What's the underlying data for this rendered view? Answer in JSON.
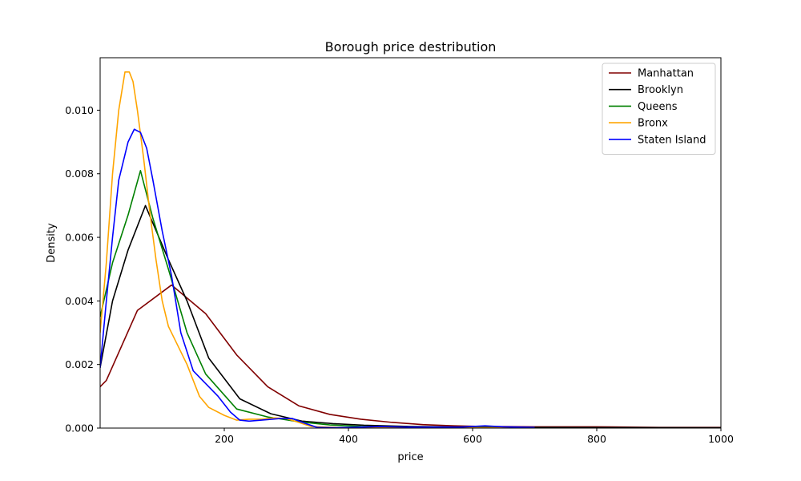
{
  "chart_data": {
    "type": "line",
    "title": "Borough price destribution",
    "xlabel": "price",
    "ylabel": "Density",
    "xlim": [
      0,
      1000
    ],
    "ylim": [
      0,
      0.01165
    ],
    "xticks": [
      200,
      400,
      600,
      800,
      1000
    ],
    "xtick_labels": [
      "200",
      "400",
      "600",
      "800",
      "1000"
    ],
    "yticks": [
      0.0,
      0.002,
      0.004,
      0.006,
      0.008,
      0.01
    ],
    "ytick_labels": [
      "0.000",
      "0.002",
      "0.004",
      "0.006",
      "0.008",
      "0.010"
    ],
    "grid": false,
    "legend_position": "top-right",
    "series": [
      {
        "name": "Manhattan",
        "color": "#800000",
        "points": [
          [
            0,
            0.0013
          ],
          [
            10,
            0.0015
          ],
          [
            60,
            0.0037
          ],
          [
            115,
            0.0045
          ],
          [
            170,
            0.0036
          ],
          [
            220,
            0.0023
          ],
          [
            270,
            0.0013
          ],
          [
            320,
            0.0007
          ],
          [
            370,
            0.00043
          ],
          [
            420,
            0.00028
          ],
          [
            470,
            0.00018
          ],
          [
            520,
            0.00011
          ],
          [
            570,
            7e-05
          ],
          [
            620,
            5e-05
          ],
          [
            700,
            4e-05
          ],
          [
            800,
            4e-05
          ],
          [
            900,
            2e-05
          ],
          [
            1000,
            2e-05
          ]
        ]
      },
      {
        "name": "Brooklyn",
        "color": "#000000",
        "points": [
          [
            0,
            0.0019
          ],
          [
            20,
            0.004
          ],
          [
            45,
            0.0056
          ],
          [
            73,
            0.007
          ],
          [
            110,
            0.0053
          ],
          [
            140,
            0.004
          ],
          [
            175,
            0.0022
          ],
          [
            225,
            0.00092
          ],
          [
            275,
            0.00045
          ],
          [
            325,
            0.00022
          ],
          [
            375,
            0.00014
          ],
          [
            425,
            9e-05
          ],
          [
            500,
            5e-05
          ],
          [
            600,
            3e-05
          ],
          [
            700,
            2e-05
          ],
          [
            1000,
            1e-05
          ]
        ]
      },
      {
        "name": "Queens",
        "color": "#008000",
        "points": [
          [
            0,
            0.0035
          ],
          [
            20,
            0.0052
          ],
          [
            45,
            0.0067
          ],
          [
            65,
            0.0081
          ],
          [
            85,
            0.0066
          ],
          [
            110,
            0.005
          ],
          [
            140,
            0.003
          ],
          [
            170,
            0.0017
          ],
          [
            220,
            0.0006
          ],
          [
            270,
            0.00035
          ],
          [
            320,
            0.0002
          ],
          [
            370,
            0.0001
          ],
          [
            420,
            5e-05
          ],
          [
            500,
            2e-05
          ],
          [
            600,
            2e-05
          ],
          [
            700,
            1e-05
          ]
        ]
      },
      {
        "name": "Bronx",
        "color": "#ffa500",
        "points": [
          [
            0,
            0.003
          ],
          [
            10,
            0.0052
          ],
          [
            20,
            0.008
          ],
          [
            30,
            0.01
          ],
          [
            40,
            0.0112
          ],
          [
            47,
            0.0112
          ],
          [
            53,
            0.0109
          ],
          [
            60,
            0.01
          ],
          [
            70,
            0.0085
          ],
          [
            80,
            0.0068
          ],
          [
            90,
            0.0053
          ],
          [
            100,
            0.004
          ],
          [
            110,
            0.0032
          ],
          [
            120,
            0.0028
          ],
          [
            140,
            0.002
          ],
          [
            160,
            0.001
          ],
          [
            175,
            0.00065
          ],
          [
            200,
            0.0004
          ],
          [
            220,
            0.00025
          ],
          [
            240,
            0.00028
          ],
          [
            260,
            0.00028
          ],
          [
            280,
            0.00032
          ],
          [
            300,
            0.0003
          ],
          [
            320,
            0.00018
          ],
          [
            340,
            5e-05
          ],
          [
            380,
            2e-05
          ],
          [
            450,
            1e-05
          ],
          [
            600,
            1e-05
          ],
          [
            700,
            1e-05
          ]
        ]
      },
      {
        "name": "Staten Island",
        "color": "#0000ff",
        "points": [
          [
            0,
            0.0019
          ],
          [
            10,
            0.004
          ],
          [
            20,
            0.006
          ],
          [
            30,
            0.0078
          ],
          [
            45,
            0.009
          ],
          [
            55,
            0.0094
          ],
          [
            65,
            0.0093
          ],
          [
            75,
            0.0088
          ],
          [
            85,
            0.0078
          ],
          [
            100,
            0.0062
          ],
          [
            115,
            0.0048
          ],
          [
            130,
            0.003
          ],
          [
            150,
            0.0018
          ],
          [
            170,
            0.0014
          ],
          [
            190,
            0.001
          ],
          [
            210,
            0.0005
          ],
          [
            225,
            0.00025
          ],
          [
            240,
            0.00022
          ],
          [
            260,
            0.00025
          ],
          [
            290,
            0.0003
          ],
          [
            310,
            0.0003
          ],
          [
            330,
            0.00015
          ],
          [
            350,
            2e-05
          ],
          [
            380,
            1e-05
          ],
          [
            400,
            2e-05
          ],
          [
            450,
            5e-05
          ],
          [
            500,
            3e-05
          ],
          [
            580,
            3e-05
          ],
          [
            620,
            7e-05
          ],
          [
            650,
            4e-05
          ],
          [
            700,
            2e-05
          ]
        ]
      }
    ]
  }
}
